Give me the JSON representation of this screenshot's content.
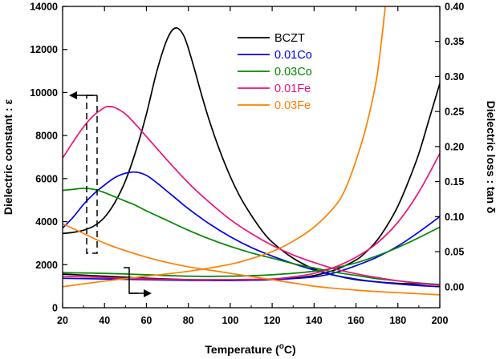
{
  "chart_data": {
    "type": "line",
    "x_axis": {
      "label_prefix": "Temperature (",
      "label_unit_sup": "o",
      "label_suffix": "C)",
      "range": [
        20,
        200
      ],
      "ticks": [
        20,
        40,
        60,
        80,
        100,
        120,
        140,
        160,
        180,
        200
      ]
    },
    "y_left": {
      "label": "Dielectric constant : ε",
      "range": [
        0,
        14000
      ],
      "ticks": [
        0,
        2000,
        4000,
        6000,
        8000,
        10000,
        12000,
        14000
      ]
    },
    "y_right": {
      "label": "Dielectric loss : tan δ",
      "range": [
        -0.03,
        0.4
      ],
      "ticks": [
        "0.00",
        "0.05",
        "0.10",
        "0.15",
        "0.20",
        "0.25",
        "0.30",
        "0.35",
        "0.40"
      ]
    },
    "legend": [
      "BCZT",
      "0.01Co",
      "0.03Co",
      "0.01Fe",
      "0.03Fe"
    ],
    "legend_placement": "top-right",
    "series": [
      {
        "name": "BCZT",
        "color": "#000000",
        "epsilon": [
          [
            20,
            3450
          ],
          [
            25,
            3500
          ],
          [
            30,
            3600
          ],
          [
            35,
            3800
          ],
          [
            40,
            4200
          ],
          [
            45,
            4900
          ],
          [
            50,
            5900
          ],
          [
            55,
            7300
          ],
          [
            60,
            9000
          ],
          [
            65,
            11000
          ],
          [
            70,
            12500
          ],
          [
            74,
            13000
          ],
          [
            78,
            12600
          ],
          [
            82,
            11400
          ],
          [
            86,
            10000
          ],
          [
            90,
            8700
          ],
          [
            95,
            7300
          ],
          [
            100,
            6100
          ],
          [
            105,
            5100
          ],
          [
            110,
            4300
          ],
          [
            115,
            3600
          ],
          [
            120,
            3050
          ],
          [
            130,
            2300
          ],
          [
            140,
            1800
          ],
          [
            150,
            1500
          ],
          [
            160,
            1300
          ],
          [
            170,
            1200
          ],
          [
            180,
            1130
          ],
          [
            190,
            1100
          ],
          [
            200,
            1080
          ]
        ],
        "tan_delta": [
          [
            20,
            0.018
          ],
          [
            40,
            0.015
          ],
          [
            60,
            0.012
          ],
          [
            80,
            0.01
          ],
          [
            100,
            0.009
          ],
          [
            120,
            0.01
          ],
          [
            130,
            0.012
          ],
          [
            140,
            0.016
          ],
          [
            150,
            0.024
          ],
          [
            160,
            0.038
          ],
          [
            165,
            0.05
          ],
          [
            170,
            0.066
          ],
          [
            175,
            0.088
          ],
          [
            180,
            0.115
          ],
          [
            185,
            0.15
          ],
          [
            190,
            0.19
          ],
          [
            195,
            0.24
          ],
          [
            200,
            0.29
          ]
        ]
      },
      {
        "name": "0.01Co",
        "color": "#0000ee",
        "epsilon": [
          [
            20,
            3700
          ],
          [
            25,
            4200
          ],
          [
            30,
            4800
          ],
          [
            35,
            5300
          ],
          [
            40,
            5700
          ],
          [
            45,
            6050
          ],
          [
            50,
            6250
          ],
          [
            55,
            6300
          ],
          [
            60,
            6150
          ],
          [
            65,
            5800
          ],
          [
            70,
            5400
          ],
          [
            75,
            5000
          ],
          [
            80,
            4600
          ],
          [
            90,
            3900
          ],
          [
            100,
            3300
          ],
          [
            110,
            2800
          ],
          [
            120,
            2400
          ],
          [
            130,
            2050
          ],
          [
            140,
            1750
          ],
          [
            150,
            1500
          ],
          [
            160,
            1330
          ],
          [
            170,
            1200
          ],
          [
            180,
            1100
          ],
          [
            190,
            1030
          ],
          [
            200,
            980
          ]
        ],
        "tan_delta": [
          [
            20,
            0.012
          ],
          [
            40,
            0.011
          ],
          [
            60,
            0.01
          ],
          [
            80,
            0.009
          ],
          [
            100,
            0.009
          ],
          [
            120,
            0.01
          ],
          [
            140,
            0.014
          ],
          [
            150,
            0.02
          ],
          [
            160,
            0.03
          ],
          [
            170,
            0.042
          ],
          [
            180,
            0.058
          ],
          [
            190,
            0.078
          ],
          [
            200,
            0.1
          ]
        ]
      },
      {
        "name": "0.03Co",
        "color": "#008800",
        "epsilon": [
          [
            20,
            5450
          ],
          [
            25,
            5500
          ],
          [
            30,
            5550
          ],
          [
            35,
            5500
          ],
          [
            40,
            5350
          ],
          [
            45,
            5150
          ],
          [
            50,
            4950
          ],
          [
            55,
            4750
          ],
          [
            60,
            4500
          ],
          [
            70,
            4050
          ],
          [
            80,
            3600
          ],
          [
            90,
            3200
          ],
          [
            100,
            2850
          ],
          [
            110,
            2550
          ],
          [
            120,
            2300
          ],
          [
            130,
            2050
          ],
          [
            140,
            1850
          ],
          [
            150,
            1650
          ],
          [
            160,
            1500
          ],
          [
            170,
            1350
          ],
          [
            180,
            1250
          ],
          [
            190,
            1150
          ],
          [
            200,
            1080
          ]
        ],
        "tan_delta": [
          [
            20,
            0.02
          ],
          [
            40,
            0.019
          ],
          [
            60,
            0.017
          ],
          [
            80,
            0.015
          ],
          [
            100,
            0.015
          ],
          [
            120,
            0.017
          ],
          [
            140,
            0.022
          ],
          [
            150,
            0.027
          ],
          [
            160,
            0.034
          ],
          [
            170,
            0.044
          ],
          [
            180,
            0.056
          ],
          [
            190,
            0.07
          ],
          [
            200,
            0.085
          ]
        ]
      },
      {
        "name": "0.01Fe",
        "color": "#ee1177",
        "epsilon": [
          [
            20,
            6950
          ],
          [
            25,
            7700
          ],
          [
            30,
            8400
          ],
          [
            35,
            8950
          ],
          [
            40,
            9300
          ],
          [
            42,
            9350
          ],
          [
            45,
            9300
          ],
          [
            50,
            9000
          ],
          [
            55,
            8500
          ],
          [
            60,
            7950
          ],
          [
            65,
            7400
          ],
          [
            70,
            6850
          ],
          [
            80,
            5800
          ],
          [
            90,
            4900
          ],
          [
            100,
            4100
          ],
          [
            110,
            3450
          ],
          [
            120,
            2900
          ],
          [
            130,
            2450
          ],
          [
            140,
            2100
          ],
          [
            150,
            1800
          ],
          [
            160,
            1580
          ],
          [
            170,
            1400
          ],
          [
            180,
            1250
          ],
          [
            190,
            1130
          ],
          [
            200,
            1050
          ]
        ],
        "tan_delta": [
          [
            20,
            0.015
          ],
          [
            40,
            0.013
          ],
          [
            60,
            0.011
          ],
          [
            80,
            0.01
          ],
          [
            100,
            0.01
          ],
          [
            120,
            0.011
          ],
          [
            130,
            0.014
          ],
          [
            140,
            0.019
          ],
          [
            150,
            0.028
          ],
          [
            160,
            0.042
          ],
          [
            170,
            0.062
          ],
          [
            180,
            0.092
          ],
          [
            190,
            0.135
          ],
          [
            200,
            0.19
          ]
        ]
      },
      {
        "name": "0.03Fe",
        "color": "#ff8000",
        "epsilon": [
          [
            20,
            3900
          ],
          [
            30,
            3450
          ],
          [
            40,
            3000
          ],
          [
            50,
            2650
          ],
          [
            60,
            2350
          ],
          [
            70,
            2100
          ],
          [
            80,
            1900
          ],
          [
            90,
            1750
          ],
          [
            100,
            1600
          ],
          [
            110,
            1450
          ],
          [
            120,
            1300
          ],
          [
            130,
            1150
          ],
          [
            140,
            1000
          ],
          [
            150,
            900
          ],
          [
            160,
            820
          ],
          [
            170,
            750
          ],
          [
            180,
            700
          ],
          [
            190,
            650
          ],
          [
            200,
            600
          ]
        ],
        "tan_delta": [
          [
            20,
            0.0
          ],
          [
            40,
            0.008
          ],
          [
            60,
            0.015
          ],
          [
            80,
            0.022
          ],
          [
            100,
            0.032
          ],
          [
            110,
            0.04
          ],
          [
            120,
            0.05
          ],
          [
            130,
            0.065
          ],
          [
            140,
            0.085
          ],
          [
            150,
            0.115
          ],
          [
            155,
            0.14
          ],
          [
            160,
            0.18
          ],
          [
            165,
            0.23
          ],
          [
            170,
            0.3
          ],
          [
            174,
            0.4
          ]
        ]
      }
    ],
    "annotations": [
      {
        "type": "arrow",
        "points_to": "left axis",
        "marks": "dielectric constant curves"
      },
      {
        "type": "arrow",
        "points_to": "right axis",
        "marks": "dielectric loss curves"
      }
    ]
  }
}
